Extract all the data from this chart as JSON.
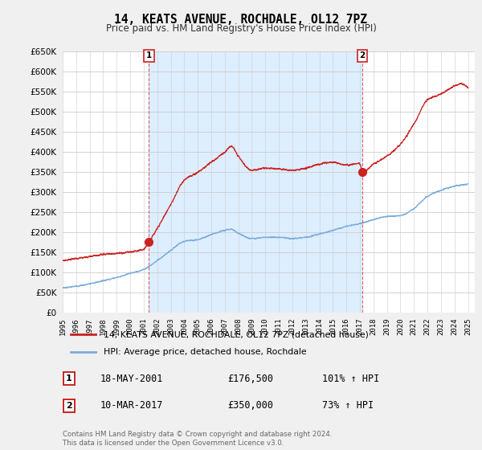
{
  "title": "14, KEATS AVENUE, ROCHDALE, OL12 7PZ",
  "subtitle": "Price paid vs. HM Land Registry's House Price Index (HPI)",
  "legend_line1": "14, KEATS AVENUE, ROCHDALE, OL12 7PZ (detached house)",
  "legend_line2": "HPI: Average price, detached house, Rochdale",
  "annotation1_date": "18-MAY-2001",
  "annotation1_price": "£176,500",
  "annotation1_pct": "101% ↑ HPI",
  "annotation1_year": 2001.38,
  "annotation1_value": 176500,
  "annotation2_date": "10-MAR-2017",
  "annotation2_price": "£350,000",
  "annotation2_pct": "73% ↑ HPI",
  "annotation2_year": 2017.19,
  "annotation2_value": 350000,
  "ylim": [
    0,
    650000
  ],
  "ytick_step": 50000,
  "xlim_left": 1995,
  "xlim_right": 2025.5,
  "footnote": "Contains HM Land Registry data © Crown copyright and database right 2024.\nThis data is licensed under the Open Government Licence v3.0.",
  "red_color": "#cc2222",
  "blue_color": "#7aadde",
  "shade_color": "#ddeeff",
  "background_color": "#f0f0f0",
  "plot_bg_color": "#ffffff",
  "hpi_data": [
    [
      1995.0,
      62000
    ],
    [
      1996.0,
      66000
    ],
    [
      1997.0,
      72000
    ],
    [
      1998.0,
      80000
    ],
    [
      1999.0,
      88000
    ],
    [
      2000.0,
      98000
    ],
    [
      2001.0,
      108000
    ],
    [
      2002.0,
      130000
    ],
    [
      2003.0,
      155000
    ],
    [
      2004.0,
      178000
    ],
    [
      2005.0,
      182000
    ],
    [
      2006.0,
      195000
    ],
    [
      2007.0,
      205000
    ],
    [
      2007.5,
      208000
    ],
    [
      2008.0,
      198000
    ],
    [
      2009.0,
      185000
    ],
    [
      2010.0,
      188000
    ],
    [
      2011.0,
      188000
    ],
    [
      2012.0,
      185000
    ],
    [
      2013.0,
      188000
    ],
    [
      2014.0,
      196000
    ],
    [
      2015.0,
      205000
    ],
    [
      2016.0,
      215000
    ],
    [
      2017.0,
      222000
    ],
    [
      2018.0,
      232000
    ],
    [
      2019.0,
      240000
    ],
    [
      2020.0,
      242000
    ],
    [
      2021.0,
      260000
    ],
    [
      2022.0,
      290000
    ],
    [
      2023.0,
      305000
    ],
    [
      2024.0,
      315000
    ],
    [
      2025.0,
      320000
    ]
  ],
  "red_data": [
    [
      1995.0,
      130000
    ],
    [
      1996.0,
      135000
    ],
    [
      1997.0,
      140000
    ],
    [
      1998.0,
      145000
    ],
    [
      1999.0,
      148000
    ],
    [
      2000.0,
      152000
    ],
    [
      2001.0,
      158000
    ],
    [
      2001.38,
      176500
    ],
    [
      2002.0,
      210000
    ],
    [
      2003.0,
      270000
    ],
    [
      2004.0,
      330000
    ],
    [
      2005.0,
      350000
    ],
    [
      2006.0,
      375000
    ],
    [
      2007.0,
      400000
    ],
    [
      2007.5,
      415000
    ],
    [
      2008.0,
      390000
    ],
    [
      2009.0,
      355000
    ],
    [
      2010.0,
      360000
    ],
    [
      2011.0,
      358000
    ],
    [
      2012.0,
      355000
    ],
    [
      2013.0,
      360000
    ],
    [
      2014.0,
      370000
    ],
    [
      2015.0,
      375000
    ],
    [
      2016.0,
      368000
    ],
    [
      2017.0,
      372000
    ],
    [
      2017.19,
      350000
    ],
    [
      2018.0,
      370000
    ],
    [
      2019.0,
      390000
    ],
    [
      2020.0,
      420000
    ],
    [
      2021.0,
      470000
    ],
    [
      2022.0,
      530000
    ],
    [
      2023.0,
      545000
    ],
    [
      2024.0,
      565000
    ],
    [
      2024.5,
      570000
    ],
    [
      2025.0,
      560000
    ]
  ]
}
